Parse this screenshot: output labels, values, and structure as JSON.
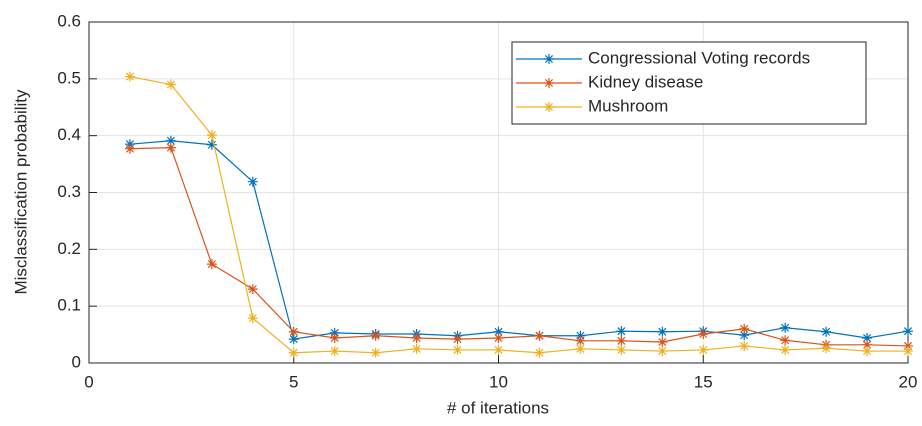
{
  "chart_data": {
    "type": "line",
    "xlabel": "# of iterations",
    "ylabel": "Misclassification probability",
    "x": [
      1,
      2,
      3,
      4,
      5,
      6,
      7,
      8,
      9,
      10,
      11,
      12,
      13,
      14,
      15,
      16,
      17,
      18,
      19,
      20
    ],
    "series": [
      {
        "name": "Congressional Voting records",
        "color": "#0072BD",
        "values": [
          0.385,
          0.391,
          0.384,
          0.319,
          0.042,
          0.053,
          0.051,
          0.051,
          0.048,
          0.055,
          0.048,
          0.048,
          0.056,
          0.055,
          0.056,
          0.049,
          0.062,
          0.055,
          0.044,
          0.056
        ]
      },
      {
        "name": "Kidney disease",
        "color": "#D95319",
        "values": [
          0.377,
          0.379,
          0.174,
          0.13,
          0.055,
          0.044,
          0.048,
          0.044,
          0.042,
          0.044,
          0.048,
          0.039,
          0.039,
          0.037,
          0.051,
          0.06,
          0.04,
          0.032,
          0.032,
          0.03
        ]
      },
      {
        "name": "Mushroom",
        "color": "#EDB120",
        "values": [
          0.504,
          0.49,
          0.401,
          0.079,
          0.018,
          0.021,
          0.018,
          0.025,
          0.023,
          0.023,
          0.018,
          0.025,
          0.023,
          0.021,
          0.023,
          0.03,
          0.023,
          0.026,
          0.021,
          0.021
        ]
      }
    ],
    "xlim": [
      0,
      20
    ],
    "xticks": [
      0,
      5,
      10,
      15,
      20
    ],
    "ylim": [
      0,
      0.6
    ],
    "yticks": [
      0,
      0.1,
      0.2,
      0.3,
      0.4,
      0.5,
      0.6
    ],
    "grid": true,
    "legend": "northeast",
    "marker": "asterisk"
  }
}
